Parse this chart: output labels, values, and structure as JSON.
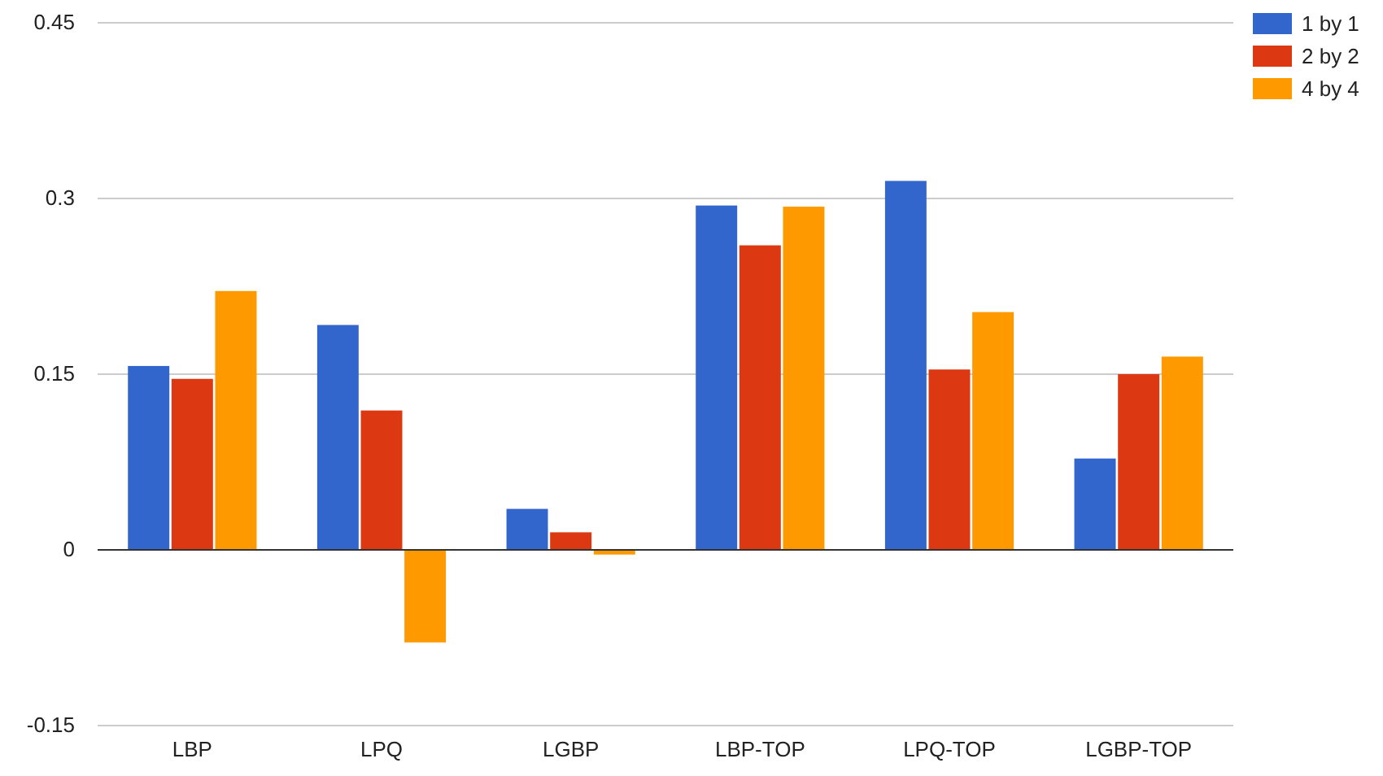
{
  "chart_data": {
    "type": "bar",
    "categories": [
      "LBP",
      "LPQ",
      "LGBP",
      "LBP-TOP",
      "LPQ-TOP",
      "LGBP-TOP"
    ],
    "series": [
      {
        "name": "1 by 1",
        "color": "#3366cc",
        "values": [
          0.157,
          0.192,
          0.035,
          0.294,
          0.315,
          0.078
        ]
      },
      {
        "name": "2 by 2",
        "color": "#dc3912",
        "values": [
          0.146,
          0.119,
          0.015,
          0.26,
          0.154,
          0.15
        ]
      },
      {
        "name": "4 by 4",
        "color": "#ff9900",
        "values": [
          0.221,
          -0.079,
          -0.004,
          0.293,
          0.203,
          0.165
        ]
      }
    ],
    "ylim": [
      -0.15,
      0.45
    ],
    "yticks": [
      -0.15,
      0,
      0.15,
      0.3,
      0.45
    ],
    "grid": "y",
    "legend": "top right"
  }
}
